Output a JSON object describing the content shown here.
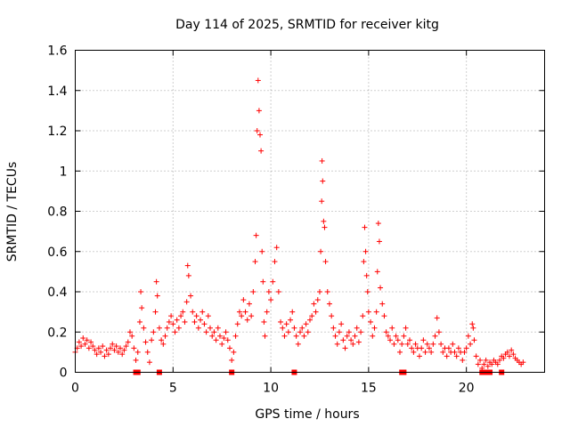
{
  "chart_data": {
    "type": "scatter",
    "title": "Day 114 of 2025, SRMTID for receiver kitg",
    "xlabel": "GPS time / hours",
    "ylabel": "SRMTID / TECUs",
    "xlim": [
      0,
      24
    ],
    "ylim": [
      0,
      1.6
    ],
    "x_ticks": [
      0,
      5,
      10,
      15,
      20
    ],
    "x_tick_labels": [
      "0",
      "5",
      "10",
      "15",
      "20"
    ],
    "y_ticks": [
      0,
      0.2,
      0.4,
      0.6,
      0.8,
      1,
      1.2,
      1.4,
      1.6
    ],
    "y_tick_labels": [
      "0",
      "0.2",
      "0.4",
      "0.6",
      "0.8",
      "1",
      "1.2",
      "1.4",
      "1.6"
    ],
    "grid": true,
    "marker": "plus",
    "color": "#ff0000",
    "series": [
      {
        "name": "SRMTID",
        "points": [
          [
            0.0,
            0.1
          ],
          [
            0.1,
            0.12
          ],
          [
            0.2,
            0.15
          ],
          [
            0.3,
            0.13
          ],
          [
            0.4,
            0.17
          ],
          [
            0.5,
            0.14
          ],
          [
            0.6,
            0.16
          ],
          [
            0.7,
            0.12
          ],
          [
            0.8,
            0.15
          ],
          [
            0.9,
            0.13
          ],
          [
            1.0,
            0.11
          ],
          [
            1.1,
            0.09
          ],
          [
            1.2,
            0.12
          ],
          [
            1.3,
            0.1
          ],
          [
            1.4,
            0.13
          ],
          [
            1.5,
            0.08
          ],
          [
            1.6,
            0.11
          ],
          [
            1.7,
            0.09
          ],
          [
            1.8,
            0.12
          ],
          [
            1.9,
            0.14
          ],
          [
            2.0,
            0.11
          ],
          [
            2.1,
            0.13
          ],
          [
            2.2,
            0.1
          ],
          [
            2.3,
            0.12
          ],
          [
            2.4,
            0.09
          ],
          [
            2.5,
            0.11
          ],
          [
            2.6,
            0.13
          ],
          [
            2.7,
            0.15
          ],
          [
            2.8,
            0.2
          ],
          [
            2.9,
            0.18
          ],
          [
            3.0,
            0.12
          ],
          [
            3.1,
            0.06
          ],
          [
            3.2,
            0.1
          ],
          [
            3.3,
            0.25
          ],
          [
            3.35,
            0.4
          ],
          [
            3.4,
            0.32
          ],
          [
            3.5,
            0.22
          ],
          [
            3.6,
            0.15
          ],
          [
            3.7,
            0.1
          ],
          [
            3.8,
            0.05
          ],
          [
            3.9,
            0.16
          ],
          [
            4.0,
            0.2
          ],
          [
            4.1,
            0.3
          ],
          [
            4.15,
            0.45
          ],
          [
            4.2,
            0.38
          ],
          [
            4.3,
            0.22
          ],
          [
            4.4,
            0.16
          ],
          [
            4.5,
            0.14
          ],
          [
            4.6,
            0.18
          ],
          [
            4.7,
            0.22
          ],
          [
            4.8,
            0.25
          ],
          [
            4.9,
            0.28
          ],
          [
            5.0,
            0.24
          ],
          [
            5.1,
            0.2
          ],
          [
            5.2,
            0.26
          ],
          [
            5.3,
            0.22
          ],
          [
            5.4,
            0.28
          ],
          [
            5.5,
            0.3
          ],
          [
            5.6,
            0.25
          ],
          [
            5.7,
            0.35
          ],
          [
            5.75,
            0.53
          ],
          [
            5.8,
            0.48
          ],
          [
            5.9,
            0.38
          ],
          [
            6.0,
            0.3
          ],
          [
            6.1,
            0.25
          ],
          [
            6.2,
            0.28
          ],
          [
            6.3,
            0.22
          ],
          [
            6.4,
            0.26
          ],
          [
            6.5,
            0.3
          ],
          [
            6.6,
            0.24
          ],
          [
            6.7,
            0.2
          ],
          [
            6.8,
            0.28
          ],
          [
            6.9,
            0.22
          ],
          [
            7.0,
            0.18
          ],
          [
            7.1,
            0.2
          ],
          [
            7.2,
            0.16
          ],
          [
            7.3,
            0.22
          ],
          [
            7.4,
            0.18
          ],
          [
            7.5,
            0.14
          ],
          [
            7.6,
            0.17
          ],
          [
            7.7,
            0.2
          ],
          [
            7.8,
            0.16
          ],
          [
            7.9,
            0.12
          ],
          [
            8.0,
            0.06
          ],
          [
            8.1,
            0.1
          ],
          [
            8.2,
            0.18
          ],
          [
            8.3,
            0.24
          ],
          [
            8.4,
            0.3
          ],
          [
            8.5,
            0.28
          ],
          [
            8.6,
            0.36
          ],
          [
            8.7,
            0.3
          ],
          [
            8.8,
            0.26
          ],
          [
            8.9,
            0.34
          ],
          [
            9.0,
            0.28
          ],
          [
            9.1,
            0.4
          ],
          [
            9.2,
            0.55
          ],
          [
            9.25,
            0.68
          ],
          [
            9.3,
            1.2
          ],
          [
            9.35,
            1.45
          ],
          [
            9.4,
            1.3
          ],
          [
            9.45,
            1.18
          ],
          [
            9.5,
            1.1
          ],
          [
            9.55,
            0.6
          ],
          [
            9.6,
            0.45
          ],
          [
            9.65,
            0.25
          ],
          [
            9.7,
            0.18
          ],
          [
            9.8,
            0.3
          ],
          [
            9.9,
            0.4
          ],
          [
            10.0,
            0.36
          ],
          [
            10.1,
            0.45
          ],
          [
            10.2,
            0.55
          ],
          [
            10.3,
            0.62
          ],
          [
            10.4,
            0.4
          ],
          [
            10.5,
            0.25
          ],
          [
            10.6,
            0.22
          ],
          [
            10.7,
            0.18
          ],
          [
            10.8,
            0.24
          ],
          [
            10.9,
            0.2
          ],
          [
            11.0,
            0.26
          ],
          [
            11.1,
            0.3
          ],
          [
            11.2,
            0.22
          ],
          [
            11.3,
            0.18
          ],
          [
            11.4,
            0.14
          ],
          [
            11.5,
            0.2
          ],
          [
            11.6,
            0.22
          ],
          [
            11.7,
            0.18
          ],
          [
            11.8,
            0.24
          ],
          [
            11.9,
            0.2
          ],
          [
            12.0,
            0.26
          ],
          [
            12.1,
            0.28
          ],
          [
            12.2,
            0.34
          ],
          [
            12.3,
            0.3
          ],
          [
            12.4,
            0.36
          ],
          [
            12.5,
            0.4
          ],
          [
            12.55,
            0.6
          ],
          [
            12.6,
            0.85
          ],
          [
            12.62,
            1.05
          ],
          [
            12.65,
            0.95
          ],
          [
            12.7,
            0.75
          ],
          [
            12.75,
            0.72
          ],
          [
            12.8,
            0.55
          ],
          [
            12.9,
            0.4
          ],
          [
            13.0,
            0.34
          ],
          [
            13.1,
            0.28
          ],
          [
            13.2,
            0.22
          ],
          [
            13.3,
            0.18
          ],
          [
            13.4,
            0.14
          ],
          [
            13.5,
            0.2
          ],
          [
            13.6,
            0.24
          ],
          [
            13.7,
            0.16
          ],
          [
            13.8,
            0.12
          ],
          [
            13.9,
            0.18
          ],
          [
            14.0,
            0.2
          ],
          [
            14.1,
            0.16
          ],
          [
            14.2,
            0.14
          ],
          [
            14.3,
            0.18
          ],
          [
            14.4,
            0.22
          ],
          [
            14.5,
            0.15
          ],
          [
            14.6,
            0.2
          ],
          [
            14.7,
            0.28
          ],
          [
            14.75,
            0.55
          ],
          [
            14.8,
            0.72
          ],
          [
            14.85,
            0.6
          ],
          [
            14.9,
            0.48
          ],
          [
            14.95,
            0.4
          ],
          [
            15.0,
            0.3
          ],
          [
            15.1,
            0.25
          ],
          [
            15.2,
            0.18
          ],
          [
            15.3,
            0.22
          ],
          [
            15.4,
            0.3
          ],
          [
            15.45,
            0.5
          ],
          [
            15.5,
            0.74
          ],
          [
            15.55,
            0.65
          ],
          [
            15.6,
            0.42
          ],
          [
            15.7,
            0.34
          ],
          [
            15.8,
            0.28
          ],
          [
            15.9,
            0.2
          ],
          [
            16.0,
            0.18
          ],
          [
            16.1,
            0.16
          ],
          [
            16.2,
            0.22
          ],
          [
            16.3,
            0.14
          ],
          [
            16.4,
            0.18
          ],
          [
            16.5,
            0.16
          ],
          [
            16.6,
            0.1
          ],
          [
            16.7,
            0.14
          ],
          [
            16.8,
            0.18
          ],
          [
            16.9,
            0.22
          ],
          [
            17.0,
            0.14
          ],
          [
            17.1,
            0.16
          ],
          [
            17.2,
            0.12
          ],
          [
            17.3,
            0.1
          ],
          [
            17.4,
            0.14
          ],
          [
            17.5,
            0.12
          ],
          [
            17.6,
            0.08
          ],
          [
            17.7,
            0.12
          ],
          [
            17.8,
            0.16
          ],
          [
            17.9,
            0.1
          ],
          [
            18.0,
            0.14
          ],
          [
            18.1,
            0.12
          ],
          [
            18.2,
            0.1
          ],
          [
            18.3,
            0.14
          ],
          [
            18.4,
            0.18
          ],
          [
            18.5,
            0.27
          ],
          [
            18.6,
            0.2
          ],
          [
            18.7,
            0.14
          ],
          [
            18.8,
            0.1
          ],
          [
            18.9,
            0.12
          ],
          [
            19.0,
            0.08
          ],
          [
            19.1,
            0.12
          ],
          [
            19.2,
            0.1
          ],
          [
            19.3,
            0.14
          ],
          [
            19.4,
            0.1
          ],
          [
            19.5,
            0.08
          ],
          [
            19.6,
            0.12
          ],
          [
            19.7,
            0.1
          ],
          [
            19.8,
            0.06
          ],
          [
            19.9,
            0.1
          ],
          [
            20.0,
            0.12
          ],
          [
            20.1,
            0.18
          ],
          [
            20.2,
            0.14
          ],
          [
            20.3,
            0.24
          ],
          [
            20.35,
            0.22
          ],
          [
            20.4,
            0.16
          ],
          [
            20.5,
            0.08
          ],
          [
            20.6,
            0.04
          ],
          [
            20.7,
            0.06
          ],
          [
            20.8,
            0.02
          ],
          [
            20.9,
            0.04
          ],
          [
            21.0,
            0.06
          ],
          [
            21.1,
            0.03
          ],
          [
            21.2,
            0.05
          ],
          [
            21.3,
            0.04
          ],
          [
            21.4,
            0.06
          ],
          [
            21.5,
            0.05
          ],
          [
            21.6,
            0.04
          ],
          [
            21.7,
            0.06
          ],
          [
            21.8,
            0.08
          ],
          [
            21.9,
            0.07
          ],
          [
            22.0,
            0.09
          ],
          [
            22.1,
            0.1
          ],
          [
            22.2,
            0.08
          ],
          [
            22.3,
            0.11
          ],
          [
            22.4,
            0.09
          ],
          [
            22.5,
            0.07
          ],
          [
            22.6,
            0.06
          ],
          [
            22.7,
            0.05
          ],
          [
            22.8,
            0.04
          ],
          [
            22.9,
            0.05
          ]
        ],
        "zero_markers": [
          3.1,
          3.2,
          4.3,
          8.0,
          11.2,
          16.7,
          16.8,
          20.8,
          21.0,
          21.2,
          21.8
        ]
      }
    ]
  }
}
